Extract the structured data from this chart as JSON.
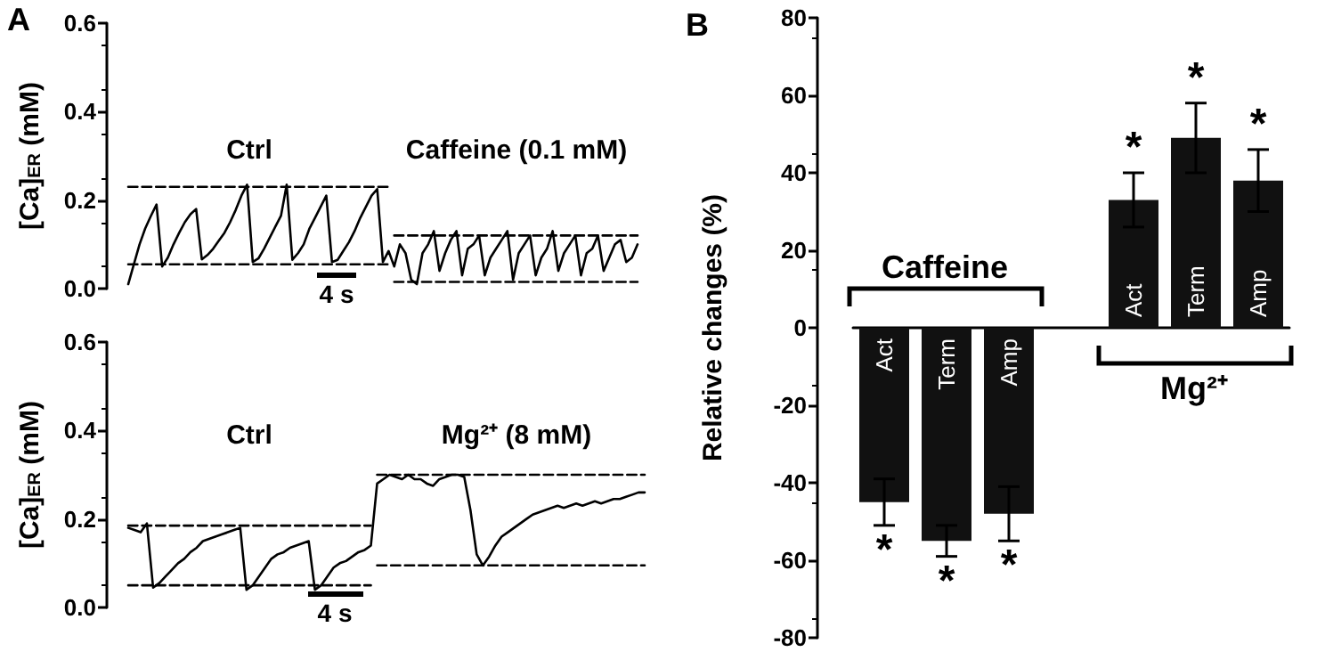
{
  "chart_data": [
    {
      "type": "line",
      "annotations": [
        "A",
        "Ctrl",
        "Caffeine (0.1 mM)",
        "4 s"
      ],
      "ylabel": "[Ca]$_{ER}$ (mM)",
      "tick_labels": "y",
      "categories": [
        null,
        null,
        null,
        null,
        null,
        null,
        null,
        null,
        null,
        null,
        null,
        null,
        null,
        null,
        null,
        null,
        null,
        null,
        null,
        null,
        null,
        null,
        null,
        null,
        null,
        null,
        null,
        null,
        null,
        null,
        null,
        null,
        null,
        null,
        null,
        null,
        null,
        null,
        null,
        null,
        null,
        null,
        null,
        null,
        null,
        null,
        null,
        null,
        null,
        null,
        null,
        null,
        null,
        null,
        null,
        null,
        null,
        null,
        null,
        null,
        null,
        null,
        null,
        null,
        null,
        null,
        null,
        null,
        null,
        null,
        null,
        null,
        null,
        null,
        null,
        null,
        null,
        null,
        null,
        null,
        null,
        null,
        null,
        null,
        null,
        null,
        null,
        null,
        null,
        null,
        null
      ],
      "series": [
        {
          "color": "#000000",
          "line_style": "solid",
          "values": [
            0.01,
            0.055,
            0.1,
            0.136,
            0.164,
            0.19,
            0.05,
            0.07,
            0.1,
            0.126,
            0.15,
            0.168,
            0.18,
            0.066,
            0.076,
            0.09,
            0.108,
            0.126,
            0.15,
            0.178,
            0.21,
            0.235,
            0.06,
            0.068,
            0.09,
            0.115,
            0.14,
            0.165,
            0.235,
            0.065,
            0.08,
            0.1,
            0.135,
            0.16,
            0.185,
            0.21,
            0.06,
            0.065,
            0.085,
            0.105,
            0.13,
            0.16,
            0.185,
            0.21,
            0.225,
            0.06,
            0.085,
            0.05,
            0.1,
            0.08,
            0.02,
            0.01,
            0.08,
            0.1,
            0.13,
            0.04,
            0.08,
            0.11,
            0.13,
            0.03,
            0.09,
            0.1,
            0.12,
            0.03,
            0.07,
            0.09,
            0.11,
            0.13,
            0.02,
            0.08,
            0.1,
            0.12,
            0.03,
            0.07,
            0.09,
            0.13,
            0.04,
            0.08,
            0.1,
            0.12,
            0.03,
            0.08,
            0.09,
            0.12,
            0.04,
            0.07,
            0.1,
            0.11,
            0.06,
            0.07,
            0.1
          ]
        },
        {
          "color": "#000000",
          "line_style": "dashed",
          "values": [
            0.23,
            0.23,
            0.23,
            0.23,
            0.23,
            0.23,
            0.23,
            0.23,
            0.23,
            0.23,
            0.23,
            0.23,
            0.23,
            0.23,
            0.23,
            0.23,
            0.23,
            0.23,
            0.23,
            0.23,
            0.23,
            0.23,
            0.23,
            0.23,
            0.23,
            0.23,
            0.23,
            0.23,
            0.23,
            0.23,
            0.23,
            0.23,
            0.23,
            0.23,
            0.23,
            0.23,
            0.23,
            0.23,
            0.23,
            0.23,
            0.23,
            0.23,
            0.23,
            0.23,
            0.23,
            0.23,
            0.23,
            null,
            null,
            null,
            null,
            null,
            null,
            null,
            null,
            null,
            null,
            null,
            null,
            null,
            null,
            null,
            null,
            null,
            null,
            null,
            null,
            null,
            null,
            null,
            null,
            null,
            null,
            null,
            null,
            null,
            null,
            null,
            null,
            null,
            null,
            null,
            null,
            null,
            null,
            null,
            null,
            null,
            null,
            null,
            null
          ]
        },
        {
          "color": "#000000",
          "line_style": "dashed",
          "values": [
            0.055,
            0.055,
            0.055,
            0.055,
            0.055,
            0.055,
            0.055,
            0.055,
            0.055,
            0.055,
            0.055,
            0.055,
            0.055,
            0.055,
            0.055,
            0.055,
            0.055,
            0.055,
            0.055,
            0.055,
            0.055,
            0.055,
            0.055,
            0.055,
            0.055,
            0.055,
            0.055,
            0.055,
            0.055,
            0.055,
            0.055,
            0.055,
            0.055,
            0.055,
            0.055,
            0.055,
            0.055,
            0.055,
            0.055,
            0.055,
            0.055,
            0.055,
            0.055,
            0.055,
            0.055,
            0.055,
            0.055,
            null,
            null,
            null,
            null,
            null,
            null,
            null,
            null,
            null,
            null,
            null,
            null,
            null,
            null,
            null,
            null,
            null,
            null,
            null,
            null,
            null,
            null,
            null,
            null,
            null,
            null,
            null,
            null,
            null,
            null,
            null,
            null,
            null,
            null,
            null,
            null,
            null,
            null,
            null,
            null,
            null,
            null,
            null,
            null
          ]
        },
        {
          "color": "#000000",
          "line_style": "dashed",
          "values": [
            null,
            null,
            null,
            null,
            null,
            null,
            null,
            null,
            null,
            null,
            null,
            null,
            null,
            null,
            null,
            null,
            null,
            null,
            null,
            null,
            null,
            null,
            null,
            null,
            null,
            null,
            null,
            null,
            null,
            null,
            null,
            null,
            null,
            null,
            null,
            null,
            null,
            null,
            null,
            null,
            null,
            null,
            null,
            null,
            null,
            null,
            null,
            0.12,
            0.12,
            0.12,
            0.12,
            0.12,
            0.12,
            0.12,
            0.12,
            0.12,
            0.12,
            0.12,
            0.12,
            0.12,
            0.12,
            0.12,
            0.12,
            0.12,
            0.12,
            0.12,
            0.12,
            0.12,
            0.12,
            0.12,
            0.12,
            0.12,
            0.12,
            0.12,
            0.12,
            0.12,
            0.12,
            0.12,
            0.12,
            0.12,
            0.12,
            0.12,
            0.12,
            0.12,
            0.12,
            0.12,
            0.12,
            0.12,
            0.12,
            0.12,
            0.12
          ]
        },
        {
          "color": "#000000",
          "line_style": "dashed",
          "values": [
            null,
            null,
            null,
            null,
            null,
            null,
            null,
            null,
            null,
            null,
            null,
            null,
            null,
            null,
            null,
            null,
            null,
            null,
            null,
            null,
            null,
            null,
            null,
            null,
            null,
            null,
            null,
            null,
            null,
            null,
            null,
            null,
            null,
            null,
            null,
            null,
            null,
            null,
            null,
            null,
            null,
            null,
            null,
            null,
            null,
            null,
            null,
            0.015,
            0.015,
            0.015,
            0.015,
            0.015,
            0.015,
            0.015,
            0.015,
            0.015,
            0.015,
            0.015,
            0.015,
            0.015,
            0.015,
            0.015,
            0.015,
            0.015,
            0.015,
            0.015,
            0.015,
            0.015,
            0.015,
            0.015,
            0.015,
            0.015,
            0.015,
            0.015,
            0.015,
            0.015,
            0.015,
            0.015,
            0.015,
            0.015,
            0.015,
            0.015,
            0.015,
            0.015,
            0.015,
            0.015,
            0.015,
            0.015,
            0.015,
            0.015,
            0.015
          ]
        }
      ],
      "ylim": [
        0,
        0.6
      ],
      "yticks": [
        {
          "value": 0,
          "label": "0.0"
        },
        {
          "value": 0.2,
          "label": "0.2"
        },
        {
          "value": 0.4,
          "label": "0.4"
        },
        {
          "value": 0.6,
          "label": "0.6"
        }
      ]
    },
    {
      "type": "line",
      "annotations": [
        "Ctrl",
        "Mg²⁺ (8 mM)",
        "4 s"
      ],
      "ylabel": "[Ca]$_{ER}$ (mM)",
      "tick_labels": "y",
      "categories": [
        null,
        null,
        null,
        null,
        null,
        null,
        null,
        null,
        null,
        null,
        null,
        null,
        null,
        null,
        null,
        null,
        null,
        null,
        null,
        null,
        null,
        null,
        null,
        null,
        null,
        null,
        null,
        null,
        null,
        null,
        null,
        null,
        null,
        null,
        null,
        null,
        null,
        null,
        null,
        null,
        null,
        null,
        null,
        null,
        null,
        null,
        null,
        null,
        null,
        null,
        null,
        null,
        null,
        null,
        null,
        null,
        null,
        null,
        null,
        null,
        null,
        null,
        null,
        null,
        null,
        null,
        null,
        null,
        null,
        null,
        null,
        null,
        null,
        null,
        null,
        null,
        null,
        null,
        null,
        null,
        null,
        null,
        null,
        null
      ],
      "series": [
        {
          "color": "#000000",
          "line_style": "solid",
          "values": [
            0.18,
            0.175,
            0.17,
            0.19,
            0.045,
            0.055,
            0.07,
            0.085,
            0.1,
            0.11,
            0.125,
            0.135,
            0.15,
            0.155,
            0.16,
            0.165,
            0.17,
            0.175,
            0.18,
            0.04,
            0.05,
            0.07,
            0.09,
            0.11,
            0.12,
            0.125,
            0.135,
            0.14,
            0.145,
            0.15,
            0.04,
            0.05,
            0.07,
            0.09,
            0.1,
            0.105,
            0.115,
            0.125,
            0.13,
            0.14,
            0.28,
            0.29,
            0.3,
            0.295,
            0.29,
            0.3,
            0.29,
            0.29,
            0.28,
            0.275,
            0.29,
            0.295,
            0.3,
            0.3,
            0.295,
            0.22,
            0.12,
            0.095,
            0.115,
            0.14,
            0.16,
            0.17,
            0.18,
            0.19,
            0.2,
            0.21,
            0.215,
            0.22,
            0.225,
            0.23,
            0.225,
            0.23,
            0.235,
            0.23,
            0.235,
            0.24,
            0.235,
            0.24,
            0.245,
            0.245,
            0.25,
            0.255,
            0.26,
            0.26
          ]
        },
        {
          "color": "#000000",
          "line_style": "dashed",
          "values": [
            0.185,
            0.185,
            0.185,
            0.185,
            0.185,
            0.185,
            0.185,
            0.185,
            0.185,
            0.185,
            0.185,
            0.185,
            0.185,
            0.185,
            0.185,
            0.185,
            0.185,
            0.185,
            0.185,
            0.185,
            0.185,
            0.185,
            0.185,
            0.185,
            0.185,
            0.185,
            0.185,
            0.185,
            0.185,
            0.185,
            0.185,
            0.185,
            0.185,
            0.185,
            0.185,
            0.185,
            0.185,
            0.185,
            0.185,
            0.185,
            null,
            null,
            null,
            null,
            null,
            null,
            null,
            null,
            null,
            null,
            null,
            null,
            null,
            null,
            null,
            null,
            null,
            null,
            null,
            null,
            null,
            null,
            null,
            null,
            null,
            null,
            null,
            null,
            null,
            null,
            null,
            null,
            null,
            null,
            null,
            null,
            null,
            null,
            null,
            null,
            null,
            null,
            null,
            null
          ]
        },
        {
          "color": "#000000",
          "line_style": "dashed",
          "values": [
            0.05,
            0.05,
            0.05,
            0.05,
            0.05,
            0.05,
            0.05,
            0.05,
            0.05,
            0.05,
            0.05,
            0.05,
            0.05,
            0.05,
            0.05,
            0.05,
            0.05,
            0.05,
            0.05,
            0.05,
            0.05,
            0.05,
            0.05,
            0.05,
            0.05,
            0.05,
            0.05,
            0.05,
            0.05,
            0.05,
            0.05,
            0.05,
            0.05,
            0.05,
            0.05,
            0.05,
            0.05,
            0.05,
            0.05,
            0.05,
            null,
            null,
            null,
            null,
            null,
            null,
            null,
            null,
            null,
            null,
            null,
            null,
            null,
            null,
            null,
            null,
            null,
            null,
            null,
            null,
            null,
            null,
            null,
            null,
            null,
            null,
            null,
            null,
            null,
            null,
            null,
            null,
            null,
            null,
            null,
            null,
            null,
            null,
            null,
            null,
            null,
            null,
            null,
            null
          ]
        },
        {
          "color": "#000000",
          "line_style": "dashed",
          "values": [
            null,
            null,
            null,
            null,
            null,
            null,
            null,
            null,
            null,
            null,
            null,
            null,
            null,
            null,
            null,
            null,
            null,
            null,
            null,
            null,
            null,
            null,
            null,
            null,
            null,
            null,
            null,
            null,
            null,
            null,
            null,
            null,
            null,
            null,
            null,
            null,
            null,
            null,
            null,
            null,
            0.3,
            0.3,
            0.3,
            0.3,
            0.3,
            0.3,
            0.3,
            0.3,
            0.3,
            0.3,
            0.3,
            0.3,
            0.3,
            0.3,
            0.3,
            0.3,
            0.3,
            0.3,
            0.3,
            0.3,
            0.3,
            0.3,
            0.3,
            0.3,
            0.3,
            0.3,
            0.3,
            0.3,
            0.3,
            0.3,
            0.3,
            0.3,
            0.3,
            0.3,
            0.3,
            0.3,
            0.3,
            0.3,
            0.3,
            0.3,
            0.3,
            0.3,
            0.3,
            0.3
          ]
        },
        {
          "color": "#000000",
          "line_style": "dashed",
          "values": [
            null,
            null,
            null,
            null,
            null,
            null,
            null,
            null,
            null,
            null,
            null,
            null,
            null,
            null,
            null,
            null,
            null,
            null,
            null,
            null,
            null,
            null,
            null,
            null,
            null,
            null,
            null,
            null,
            null,
            null,
            null,
            null,
            null,
            null,
            null,
            null,
            null,
            null,
            null,
            null,
            0.095,
            0.095,
            0.095,
            0.095,
            0.095,
            0.095,
            0.095,
            0.095,
            0.095,
            0.095,
            0.095,
            0.095,
            0.095,
            0.095,
            0.095,
            0.095,
            0.095,
            0.095,
            0.095,
            0.095,
            0.095,
            0.095,
            0.095,
            0.095,
            0.095,
            0.095,
            0.095,
            0.095,
            0.095,
            0.095,
            0.095,
            0.095,
            0.095,
            0.095,
            0.095,
            0.095,
            0.095,
            0.095,
            0.095,
            0.095,
            0.095,
            0.095,
            0.095,
            0.095
          ]
        }
      ],
      "ylim": [
        0,
        0.6
      ],
      "yticks": [
        {
          "value": 0,
          "label": "0.0"
        },
        {
          "value": 0.2,
          "label": "0.2"
        },
        {
          "value": 0.4,
          "label": "0.4"
        },
        {
          "value": 0.6,
          "label": "0.6"
        }
      ]
    },
    {
      "type": "bar",
      "title": "B",
      "ylabel": "Relative changes (%)",
      "annotations": [
        "Caffeine",
        "Mg²⁺"
      ],
      "categories": [
        "Act",
        "Term",
        "Amp",
        null,
        "Act",
        "Term",
        "Amp"
      ],
      "values": [
        -45,
        -55,
        -48,
        null,
        33,
        49,
        38
      ],
      "errors": [
        6,
        4,
        7,
        null,
        7,
        9,
        8
      ],
      "value_labels": [
        "*",
        "*",
        "*",
        null,
        "*",
        "*",
        "*"
      ],
      "color": "#111111",
      "ylim": [
        -80,
        80
      ],
      "yticks": [
        -80,
        -60,
        -40,
        -20,
        0,
        20,
        40,
        60,
        80
      ]
    }
  ]
}
